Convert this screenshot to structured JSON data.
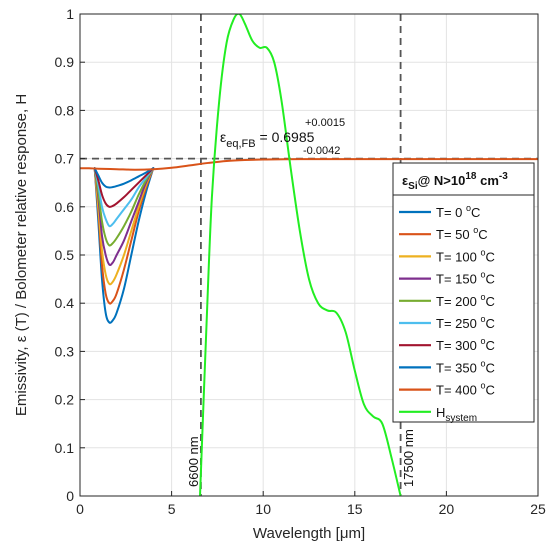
{
  "chart_data": {
    "type": "line",
    "xlabel": "Wavelength [μm]",
    "ylabel": "Emissivity, ε (T) / Bolometer relative response, H",
    "xlim": [
      0,
      25
    ],
    "ylim": [
      0,
      1
    ],
    "xticks": [
      "0",
      "5",
      "10",
      "15",
      "20",
      "25"
    ],
    "yticks": [
      "0",
      "0.1",
      "0.2",
      "0.3",
      "0.4",
      "0.5",
      "0.6",
      "0.7",
      "0.8",
      "0.9",
      "1"
    ],
    "grid": true,
    "legend": {
      "placement": "right",
      "title_main": "ε",
      "title_sub": "Si",
      "title_rest": "@ N>10",
      "title_sup": "18",
      "title_unit": " cm",
      "title_unit_sup": "-3"
    },
    "series": [
      {
        "name": "T= 0 °C",
        "label_text": "T= 0 ",
        "label_sup": "o",
        "label_unit": "C",
        "color": "#0072BD",
        "x": [
          0.8,
          1.0,
          1.2,
          1.4,
          1.6,
          1.8,
          2.0,
          2.4,
          2.8,
          3.2,
          3.6,
          4.0
        ],
        "y": [
          0.68,
          0.57,
          0.45,
          0.38,
          0.36,
          0.365,
          0.38,
          0.43,
          0.5,
          0.57,
          0.63,
          0.68
        ]
      },
      {
        "name": "T= 50 °C",
        "label_text": "T= 50 ",
        "label_sup": "o",
        "label_unit": "C",
        "color": "#D95319",
        "x": [
          0.8,
          1.0,
          1.2,
          1.4,
          1.6,
          1.8,
          2.0,
          2.4,
          2.8,
          3.2,
          3.6,
          4.0
        ],
        "y": [
          0.68,
          0.59,
          0.48,
          0.42,
          0.4,
          0.405,
          0.42,
          0.47,
          0.53,
          0.59,
          0.64,
          0.68
        ]
      },
      {
        "name": "T= 100 °C",
        "label_text": "T= 100 ",
        "label_sup": "o",
        "label_unit": "C",
        "color": "#EDB120",
        "x": [
          0.8,
          1.0,
          1.2,
          1.4,
          1.6,
          1.8,
          2.0,
          2.4,
          2.8,
          3.2,
          3.6,
          4.0
        ],
        "y": [
          0.68,
          0.6,
          0.51,
          0.46,
          0.44,
          0.445,
          0.46,
          0.5,
          0.55,
          0.6,
          0.645,
          0.68
        ]
      },
      {
        "name": "T= 150 °C",
        "label_text": "T= 150 ",
        "label_sup": "o",
        "label_unit": "C",
        "color": "#7E2F8E",
        "x": [
          0.8,
          1.0,
          1.2,
          1.4,
          1.6,
          1.8,
          2.0,
          2.4,
          2.8,
          3.2,
          3.6,
          4.0
        ],
        "y": [
          0.68,
          0.62,
          0.54,
          0.5,
          0.48,
          0.485,
          0.5,
          0.53,
          0.57,
          0.61,
          0.65,
          0.68
        ]
      },
      {
        "name": "T= 200 °C",
        "label_text": "T= 200 ",
        "label_sup": "o",
        "label_unit": "C",
        "color": "#77AC30",
        "x": [
          0.8,
          1.0,
          1.2,
          1.4,
          1.6,
          1.8,
          2.0,
          2.4,
          2.8,
          3.2,
          3.6,
          4.0
        ],
        "y": [
          0.68,
          0.63,
          0.57,
          0.535,
          0.52,
          0.525,
          0.535,
          0.56,
          0.59,
          0.625,
          0.655,
          0.68
        ]
      },
      {
        "name": "T= 250 °C",
        "label_text": "T= 250 ",
        "label_sup": "o",
        "label_unit": "C",
        "color": "#4DBEEE",
        "x": [
          0.8,
          1.0,
          1.2,
          1.4,
          1.6,
          1.8,
          2.0,
          2.4,
          2.8,
          3.2,
          3.6,
          4.0
        ],
        "y": [
          0.68,
          0.645,
          0.6,
          0.575,
          0.56,
          0.565,
          0.575,
          0.595,
          0.615,
          0.64,
          0.66,
          0.68
        ]
      },
      {
        "name": "T= 300 °C",
        "label_text": "T= 300 ",
        "label_sup": "o",
        "label_unit": "C",
        "color": "#A2142F",
        "x": [
          0.8,
          1.0,
          1.2,
          1.4,
          1.6,
          1.8,
          2.0,
          2.4,
          2.8,
          3.2,
          3.6,
          4.0
        ],
        "y": [
          0.68,
          0.655,
          0.625,
          0.607,
          0.6,
          0.602,
          0.607,
          0.62,
          0.635,
          0.65,
          0.665,
          0.68
        ]
      },
      {
        "name": "T= 350 °C",
        "label_text": "T= 350 ",
        "label_sup": "o",
        "label_unit": "C",
        "color": "#0072BD",
        "x": [
          0.8,
          1.0,
          1.2,
          1.4,
          1.6,
          1.8,
          2.0,
          2.4,
          2.8,
          3.2,
          3.6,
          4.0
        ],
        "y": [
          0.68,
          0.665,
          0.65,
          0.642,
          0.64,
          0.641,
          0.643,
          0.648,
          0.655,
          0.663,
          0.671,
          0.68
        ]
      },
      {
        "name": "T= 400 °C",
        "label_text": "T= 400 ",
        "label_sup": "o",
        "label_unit": "C",
        "color": "#D95319",
        "x": [
          0.0,
          0.5,
          1.0,
          2.0,
          3.0,
          4.0,
          5.0,
          6.0,
          7.0,
          8.0,
          9.0,
          10.0,
          12.0,
          15.0,
          20.0,
          25.0
        ],
        "y": [
          0.68,
          0.68,
          0.679,
          0.678,
          0.677,
          0.678,
          0.681,
          0.686,
          0.691,
          0.695,
          0.697,
          0.698,
          0.699,
          0.699,
          0.699,
          0.699
        ]
      },
      {
        "name": "H system",
        "label_text": "H",
        "label_sub": "system",
        "color": "#22EE22",
        "x": [
          6.55,
          6.9,
          7.2,
          7.6,
          8.0,
          8.4,
          8.7,
          9.0,
          9.4,
          9.8,
          10.2,
          10.6,
          11.0,
          11.5,
          12.0,
          12.5,
          13.0,
          13.5,
          14.0,
          14.5,
          15.0,
          15.5,
          16.0,
          16.5,
          17.0,
          17.5
        ],
        "y": [
          0.0,
          0.35,
          0.62,
          0.82,
          0.94,
          0.99,
          1.0,
          0.98,
          0.945,
          0.93,
          0.93,
          0.9,
          0.82,
          0.68,
          0.55,
          0.45,
          0.4,
          0.385,
          0.38,
          0.34,
          0.26,
          0.19,
          0.165,
          0.15,
          0.08,
          0.0
        ]
      }
    ],
    "annotations": {
      "eps_main": "ε",
      "eps_sub": "eq,FB",
      "eps_value": " = 0.6985",
      "plus": "+0.0015",
      "minus": "-0.0042",
      "left_cutoff": "6600 nm",
      "right_cutoff": "17500 nm"
    },
    "reference_lines": {
      "horizontal_y": 0.7,
      "vertical_x": [
        6.6,
        17.5
      ],
      "color": "#555555"
    }
  }
}
